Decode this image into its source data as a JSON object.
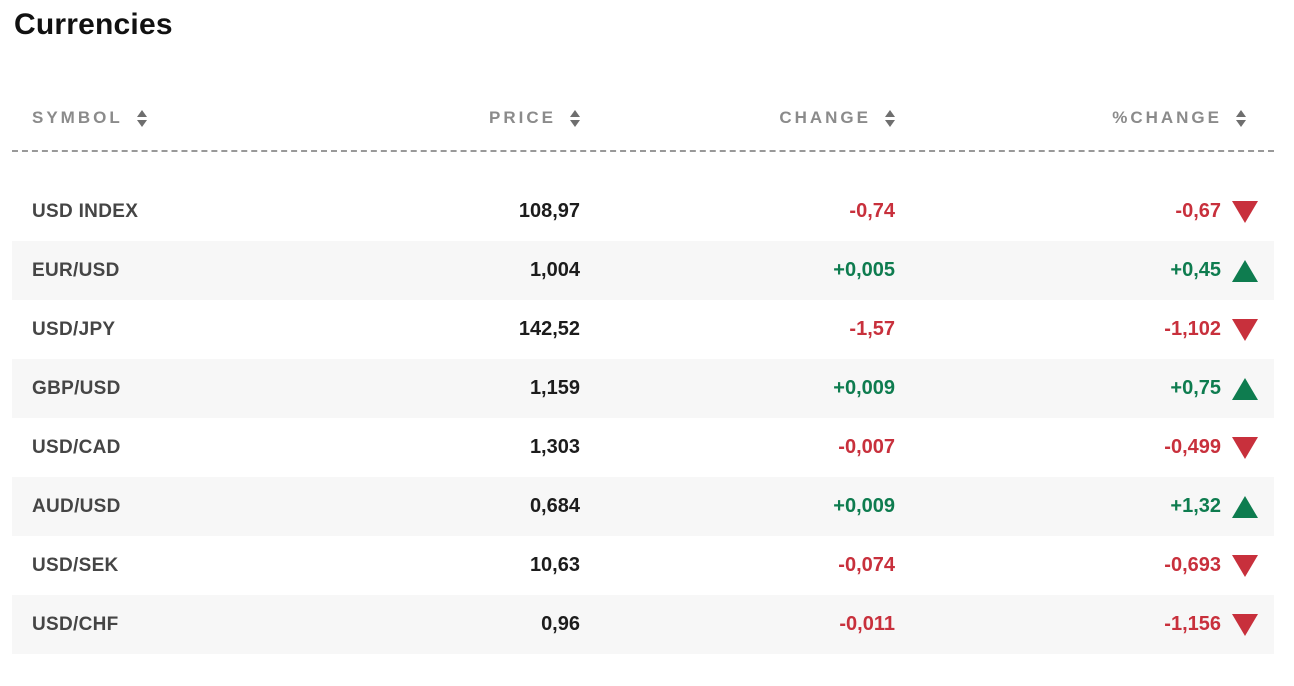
{
  "page": {
    "title": "Currencies"
  },
  "colors": {
    "negative": "#c8303c",
    "positive": "#0e7c4f",
    "header_text": "#8b8b8b",
    "symbol_text": "#454545",
    "price_text": "#1c1c1c",
    "row_alt_background": "#f7f7f7",
    "dashed_divider": "#999999",
    "sort_arrow": "#6e6e6e"
  },
  "table": {
    "columns": [
      {
        "key": "symbol",
        "label": "SYMBOL",
        "sortable": true
      },
      {
        "key": "price",
        "label": "PRICE",
        "sortable": true
      },
      {
        "key": "change",
        "label": "CHANGE",
        "sortable": true
      },
      {
        "key": "pct_change",
        "label": "%CHANGE",
        "sortable": true
      }
    ],
    "rows": [
      {
        "symbol": "USD INDEX",
        "price": "108,97",
        "change": "-0,74",
        "pct_change": "-0,67",
        "direction": "down"
      },
      {
        "symbol": "EUR/USD",
        "price": "1,004",
        "change": "+0,005",
        "pct_change": "+0,45",
        "direction": "up"
      },
      {
        "symbol": "USD/JPY",
        "price": "142,52",
        "change": "-1,57",
        "pct_change": "-1,102",
        "direction": "down"
      },
      {
        "symbol": "GBP/USD",
        "price": "1,159",
        "change": "+0,009",
        "pct_change": "+0,75",
        "direction": "up"
      },
      {
        "symbol": "USD/CAD",
        "price": "1,303",
        "change": "-0,007",
        "pct_change": "-0,499",
        "direction": "down"
      },
      {
        "symbol": "AUD/USD",
        "price": "0,684",
        "change": "+0,009",
        "pct_change": "+1,32",
        "direction": "up"
      },
      {
        "symbol": "USD/SEK",
        "price": "10,63",
        "change": "-0,074",
        "pct_change": "-0,693",
        "direction": "down"
      },
      {
        "symbol": "USD/CHF",
        "price": "0,96",
        "change": "-0,011",
        "pct_change": "-1,156",
        "direction": "down"
      }
    ]
  }
}
